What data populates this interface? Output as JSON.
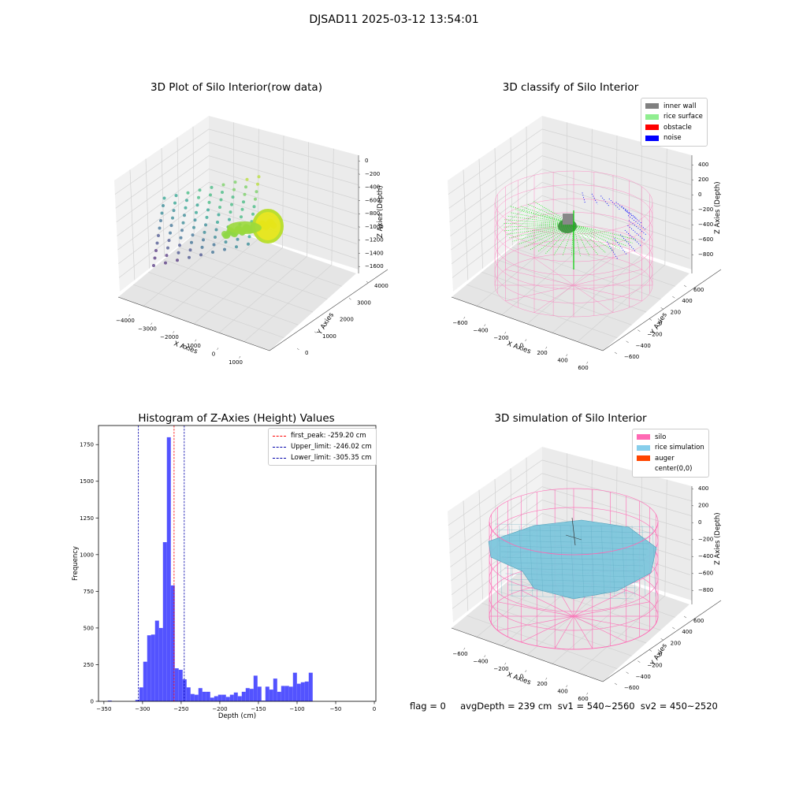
{
  "suptitle": "DJSAD11 2025-03-12 13:54:01",
  "status_line": "flag = 0     avgDepth = 239 cm  sv1 = 540~2560  sv2 = 450~2520",
  "chart_data": [
    {
      "type": "scatter",
      "title": "3D Plot of Silo Interior(row data)",
      "xlabel": "X Axies",
      "ylabel": "Y Axies",
      "zlabel": "Z Axies (Depth)",
      "x_ticks": [
        "−4000",
        "−3000",
        "−2000",
        "−1000",
        "0",
        "1000"
      ],
      "y_ticks": [
        "0",
        "1000",
        "2000",
        "3000",
        "4000"
      ],
      "z_ticks": [
        "0",
        "−200",
        "−400",
        "−600",
        "−800",
        "−1000",
        "−1200",
        "−1400",
        "−1600"
      ],
      "grid": true,
      "colormap": "viridis"
    },
    {
      "type": "scatter",
      "title": "3D classify of Silo Interior",
      "xlabel": "X Axies",
      "ylabel": "Y Axies",
      "zlabel": "Z Axies (Depth)",
      "x_ticks": [
        "−600",
        "−400",
        "−200",
        "0",
        "200",
        "400",
        "600"
      ],
      "y_ticks": [
        "−600",
        "−400",
        "−200",
        "0",
        "200",
        "400",
        "600"
      ],
      "z_ticks": [
        "400",
        "200",
        "0",
        "−200",
        "−400",
        "−600",
        "−800"
      ],
      "legend_position": "top-right",
      "legend": [
        {
          "label": "inner wall",
          "color": "#808080"
        },
        {
          "label": "rice surface",
          "color": "#90ee90"
        },
        {
          "label": "obstacle",
          "color": "#ff0000"
        },
        {
          "label": "noise",
          "color": "#0000ff"
        }
      ]
    },
    {
      "type": "bar",
      "title": "Histogram of Z-Axies (Height) Values",
      "xlabel": "Depth (cm)",
      "ylabel": "Frequency",
      "xlim": [
        -357,
        2
      ],
      "ylim": [
        0,
        1880
      ],
      "x_ticks": [
        -350,
        -300,
        -250,
        -200,
        -150,
        -100,
        -50,
        0
      ],
      "y_ticks": [
        0,
        250,
        500,
        750,
        1000,
        1250,
        1500,
        1750
      ],
      "bin_width": 5.1,
      "bin_start": -345,
      "values": [
        5,
        0,
        0,
        0,
        0,
        0,
        0,
        10,
        95,
        270,
        450,
        455,
        550,
        500,
        1085,
        1800,
        790,
        225,
        215,
        150,
        95,
        50,
        45,
        90,
        65,
        65,
        25,
        35,
        45,
        45,
        30,
        45,
        60,
        35,
        65,
        90,
        85,
        175,
        100,
        5,
        100,
        80,
        155,
        65,
        105,
        105,
        100,
        195,
        120,
        130,
        135,
        195
      ],
      "bar_color": "#5050ff",
      "lines": [
        {
          "label": "first_peak: -259.20 cm",
          "x": -259.2,
          "color": "#ff0000"
        },
        {
          "label": "Upper_limit: -246.02 cm",
          "x": -246.02,
          "color": "#0000aa"
        },
        {
          "label": "Lower_limit: -305.35 cm",
          "x": -305.35,
          "color": "#0000aa"
        }
      ],
      "legend_position": "top-right"
    },
    {
      "type": "surface",
      "title": "3D simulation of Silo Interior",
      "xlabel": "X Axies",
      "ylabel": "Y Axies",
      "zlabel": "Z Axies (Depth)",
      "x_ticks": [
        "−600",
        "−400",
        "−200",
        "0",
        "200",
        "400",
        "600"
      ],
      "y_ticks": [
        "−600",
        "−400",
        "−200",
        "0",
        "200",
        "400",
        "600"
      ],
      "z_ticks": [
        "400",
        "200",
        "0",
        "−200",
        "−400",
        "−600",
        "−800"
      ],
      "legend_position": "top-right",
      "legend": [
        {
          "label": "silo",
          "color": "#ff69b4"
        },
        {
          "label": "rice simulation",
          "color": "#87ceeb"
        },
        {
          "label": "auger",
          "color": "#ff4500"
        },
        {
          "label": "center(0,0)",
          "color": "#ffffff"
        }
      ]
    }
  ]
}
